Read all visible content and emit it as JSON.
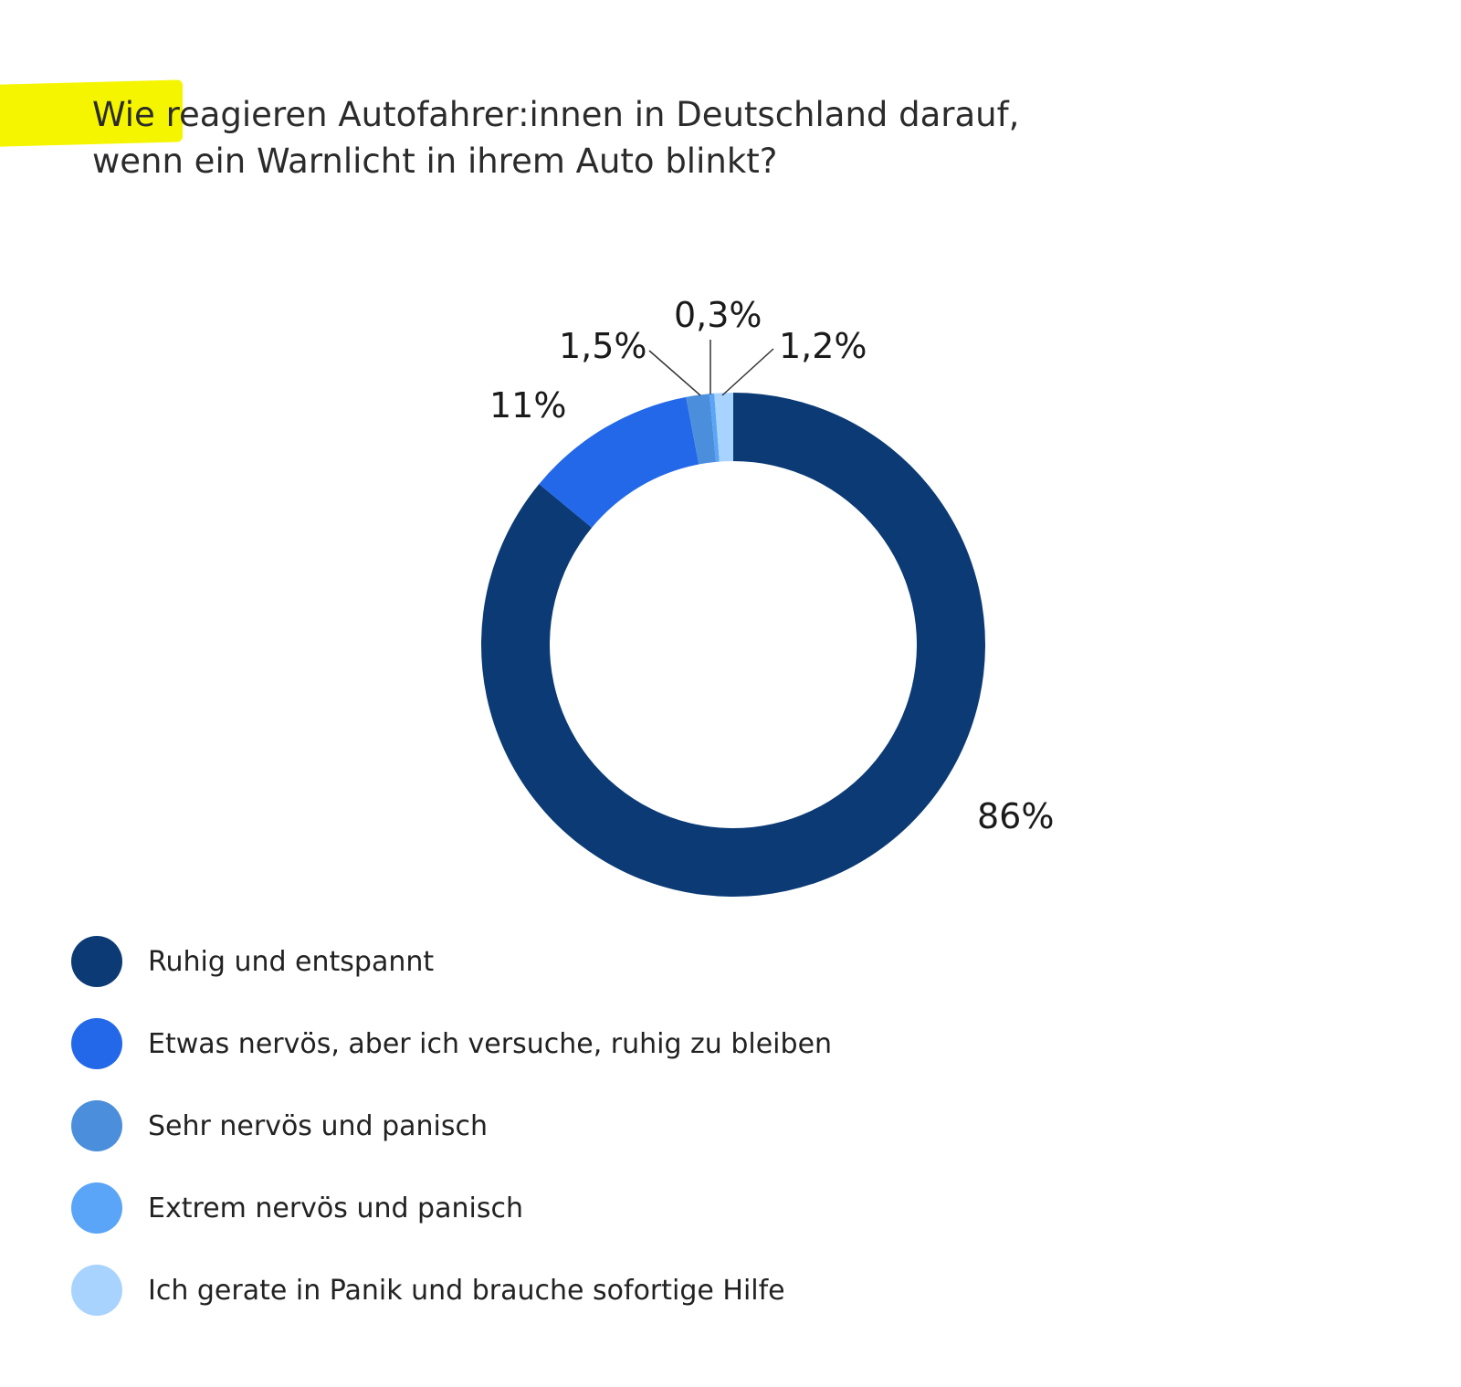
{
  "chart_data": {
    "type": "pie",
    "title": "Wie reagieren Autofahrer:innen in Deutschland darauf, wenn ein Warnlicht in ihrem Auto blinkt?",
    "title_lines": [
      "Wie reagieren Autofahrer:innen in Deutschland darauf,",
      "wenn ein Warnlicht in ihrem Auto blinkt?"
    ],
    "donut": true,
    "legend_position": "bottom-left",
    "slices": [
      {
        "name": "Ruhig und entspannt",
        "value": 86,
        "label": "86%",
        "color": "#0b3a75"
      },
      {
        "name": "Etwas nervös, aber ich versuche, ruhig zu bleiben",
        "value": 11,
        "label": "11%",
        "color": "#2368e8"
      },
      {
        "name": "Sehr nervös und panisch",
        "value": 1.5,
        "label": "1,5%",
        "color": "#4b8fdc"
      },
      {
        "name": "Extrem nervös und panisch",
        "value": 0.3,
        "label": "0,3%",
        "color": "#5aa5f7"
      },
      {
        "name": "Ich gerate in Panik und brauche sofortige Hilfe",
        "value": 1.2,
        "label": "1,2%",
        "color": "#a9d3ff"
      }
    ]
  },
  "highlight_color": "#f5f500"
}
